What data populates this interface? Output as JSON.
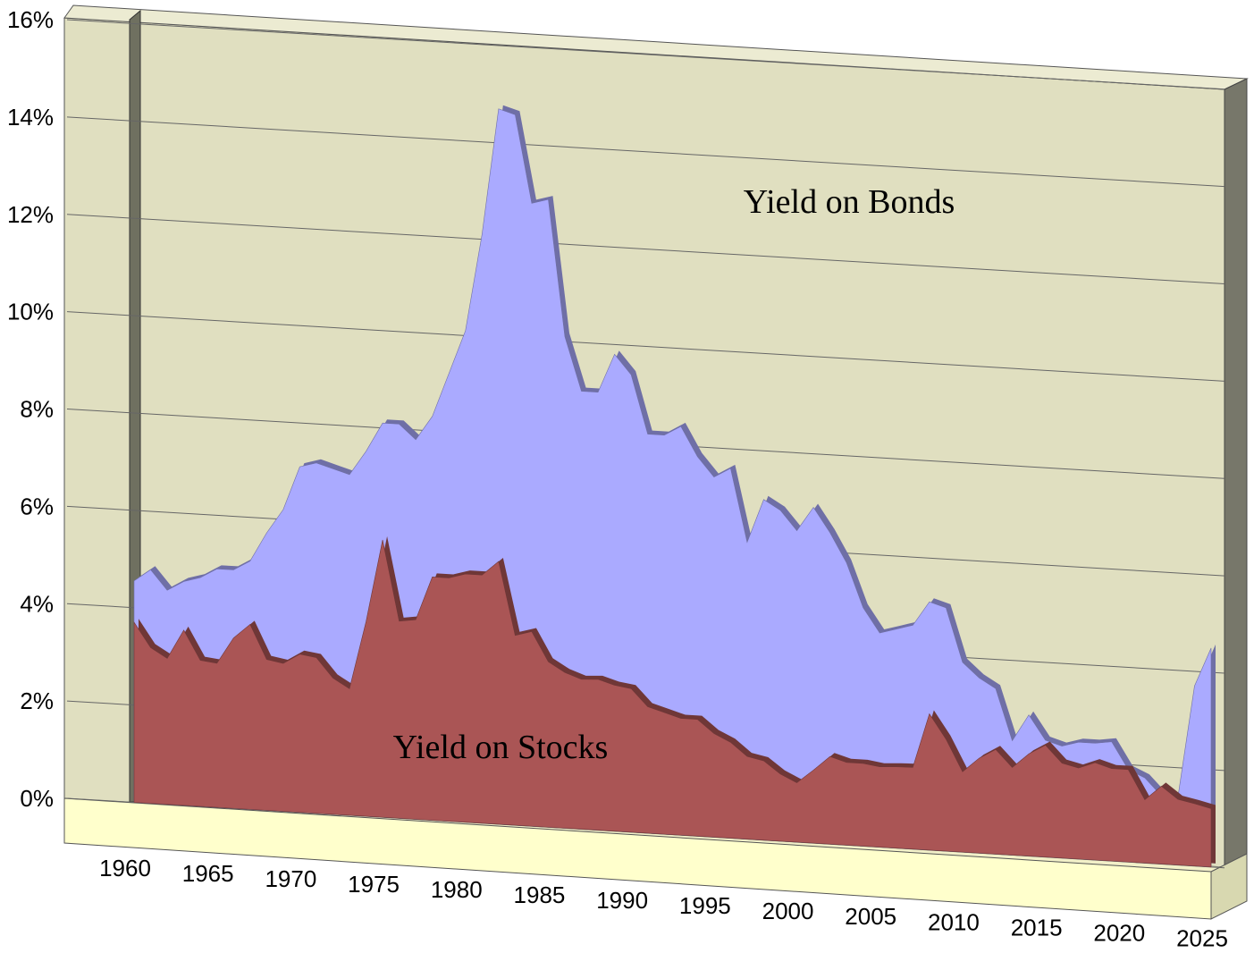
{
  "chart_data": {
    "type": "area",
    "annotations": [
      "Yield on Bonds",
      "Yield on Stocks"
    ],
    "x": [
      1960,
      1961,
      1962,
      1963,
      1964,
      1965,
      1966,
      1967,
      1968,
      1969,
      1970,
      1971,
      1972,
      1973,
      1974,
      1975,
      1976,
      1977,
      1978,
      1979,
      1980,
      1981,
      1982,
      1983,
      1984,
      1985,
      1986,
      1987,
      1988,
      1989,
      1990,
      1991,
      1992,
      1993,
      1994,
      1995,
      1996,
      1997,
      1998,
      1999,
      2000,
      2001,
      2002,
      2003,
      2004,
      2005,
      2006,
      2007,
      2008,
      2009,
      2010,
      2011,
      2012,
      2013,
      2014,
      2015,
      2016,
      2017,
      2018,
      2019,
      2020,
      2021,
      2022,
      2023,
      2024,
      2025
    ],
    "series": [
      {
        "name": "Yield on Bonds",
        "color": "#aaaaff",
        "values": [
          4.55,
          4.8,
          4.4,
          4.6,
          4.7,
          4.9,
          4.9,
          5.1,
          5.7,
          6.2,
          7.1,
          7.2,
          7.1,
          7.0,
          7.5,
          8.1,
          8.1,
          7.8,
          8.3,
          9.2,
          10.1,
          12.1,
          14.7,
          14.6,
          12.8,
          12.9,
          10.1,
          9.0,
          9.0,
          9.8,
          9.4,
          8.2,
          8.2,
          8.4,
          7.8,
          7.4,
          7.6,
          6.1,
          7.0,
          6.8,
          6.4,
          6.9,
          6.4,
          5.8,
          4.9,
          4.4,
          4.5,
          4.6,
          5.1,
          5.0,
          3.9,
          3.6,
          3.4,
          2.35,
          2.9,
          2.4,
          2.3,
          2.4,
          2.4,
          2.45,
          1.9,
          1.75,
          1.4,
          1.4,
          3.7,
          4.5
        ]
      },
      {
        "name": "Yield on Stocks",
        "color": "#aa5555",
        "values": [
          3.7,
          3.2,
          3.0,
          3.6,
          3.0,
          2.96,
          3.5,
          3.8,
          3.1,
          3.04,
          3.25,
          3.2,
          2.8,
          2.6,
          4.0,
          5.7,
          4.05,
          4.1,
          5.0,
          5.0,
          5.1,
          5.1,
          5.4,
          3.9,
          4.0,
          3.4,
          3.2,
          3.08,
          3.1,
          3.0,
          2.95,
          2.6,
          2.5,
          2.4,
          2.4,
          2.13,
          1.97,
          1.7,
          1.63,
          1.38,
          1.22,
          1.5,
          1.8,
          1.7,
          1.7,
          1.65,
          1.67,
          1.68,
          2.8,
          2.3,
          1.65,
          1.95,
          2.15,
          1.8,
          2.1,
          2.3,
          1.95,
          1.87,
          2.0,
          1.9,
          1.9,
          1.3,
          1.6,
          1.35,
          1.28,
          1.2
        ]
      }
    ],
    "xlim": [
      1960,
      2025
    ],
    "xticks": [
      1960,
      1965,
      1970,
      1975,
      1980,
      1985,
      1990,
      1995,
      2000,
      2005,
      2010,
      2015,
      2020,
      2025
    ],
    "ylim": [
      0,
      16
    ],
    "yticks": [
      {
        "value": 0,
        "label": "0%"
      },
      {
        "value": 2,
        "label": "2%"
      },
      {
        "value": 4,
        "label": "4%"
      },
      {
        "value": 6,
        "label": "6%"
      },
      {
        "value": 8,
        "label": "8%"
      },
      {
        "value": 10,
        "label": "10%"
      },
      {
        "value": 12,
        "label": "12%"
      },
      {
        "value": 14,
        "label": "14%"
      },
      {
        "value": 16,
        "label": "16%"
      }
    ],
    "grid": true
  }
}
